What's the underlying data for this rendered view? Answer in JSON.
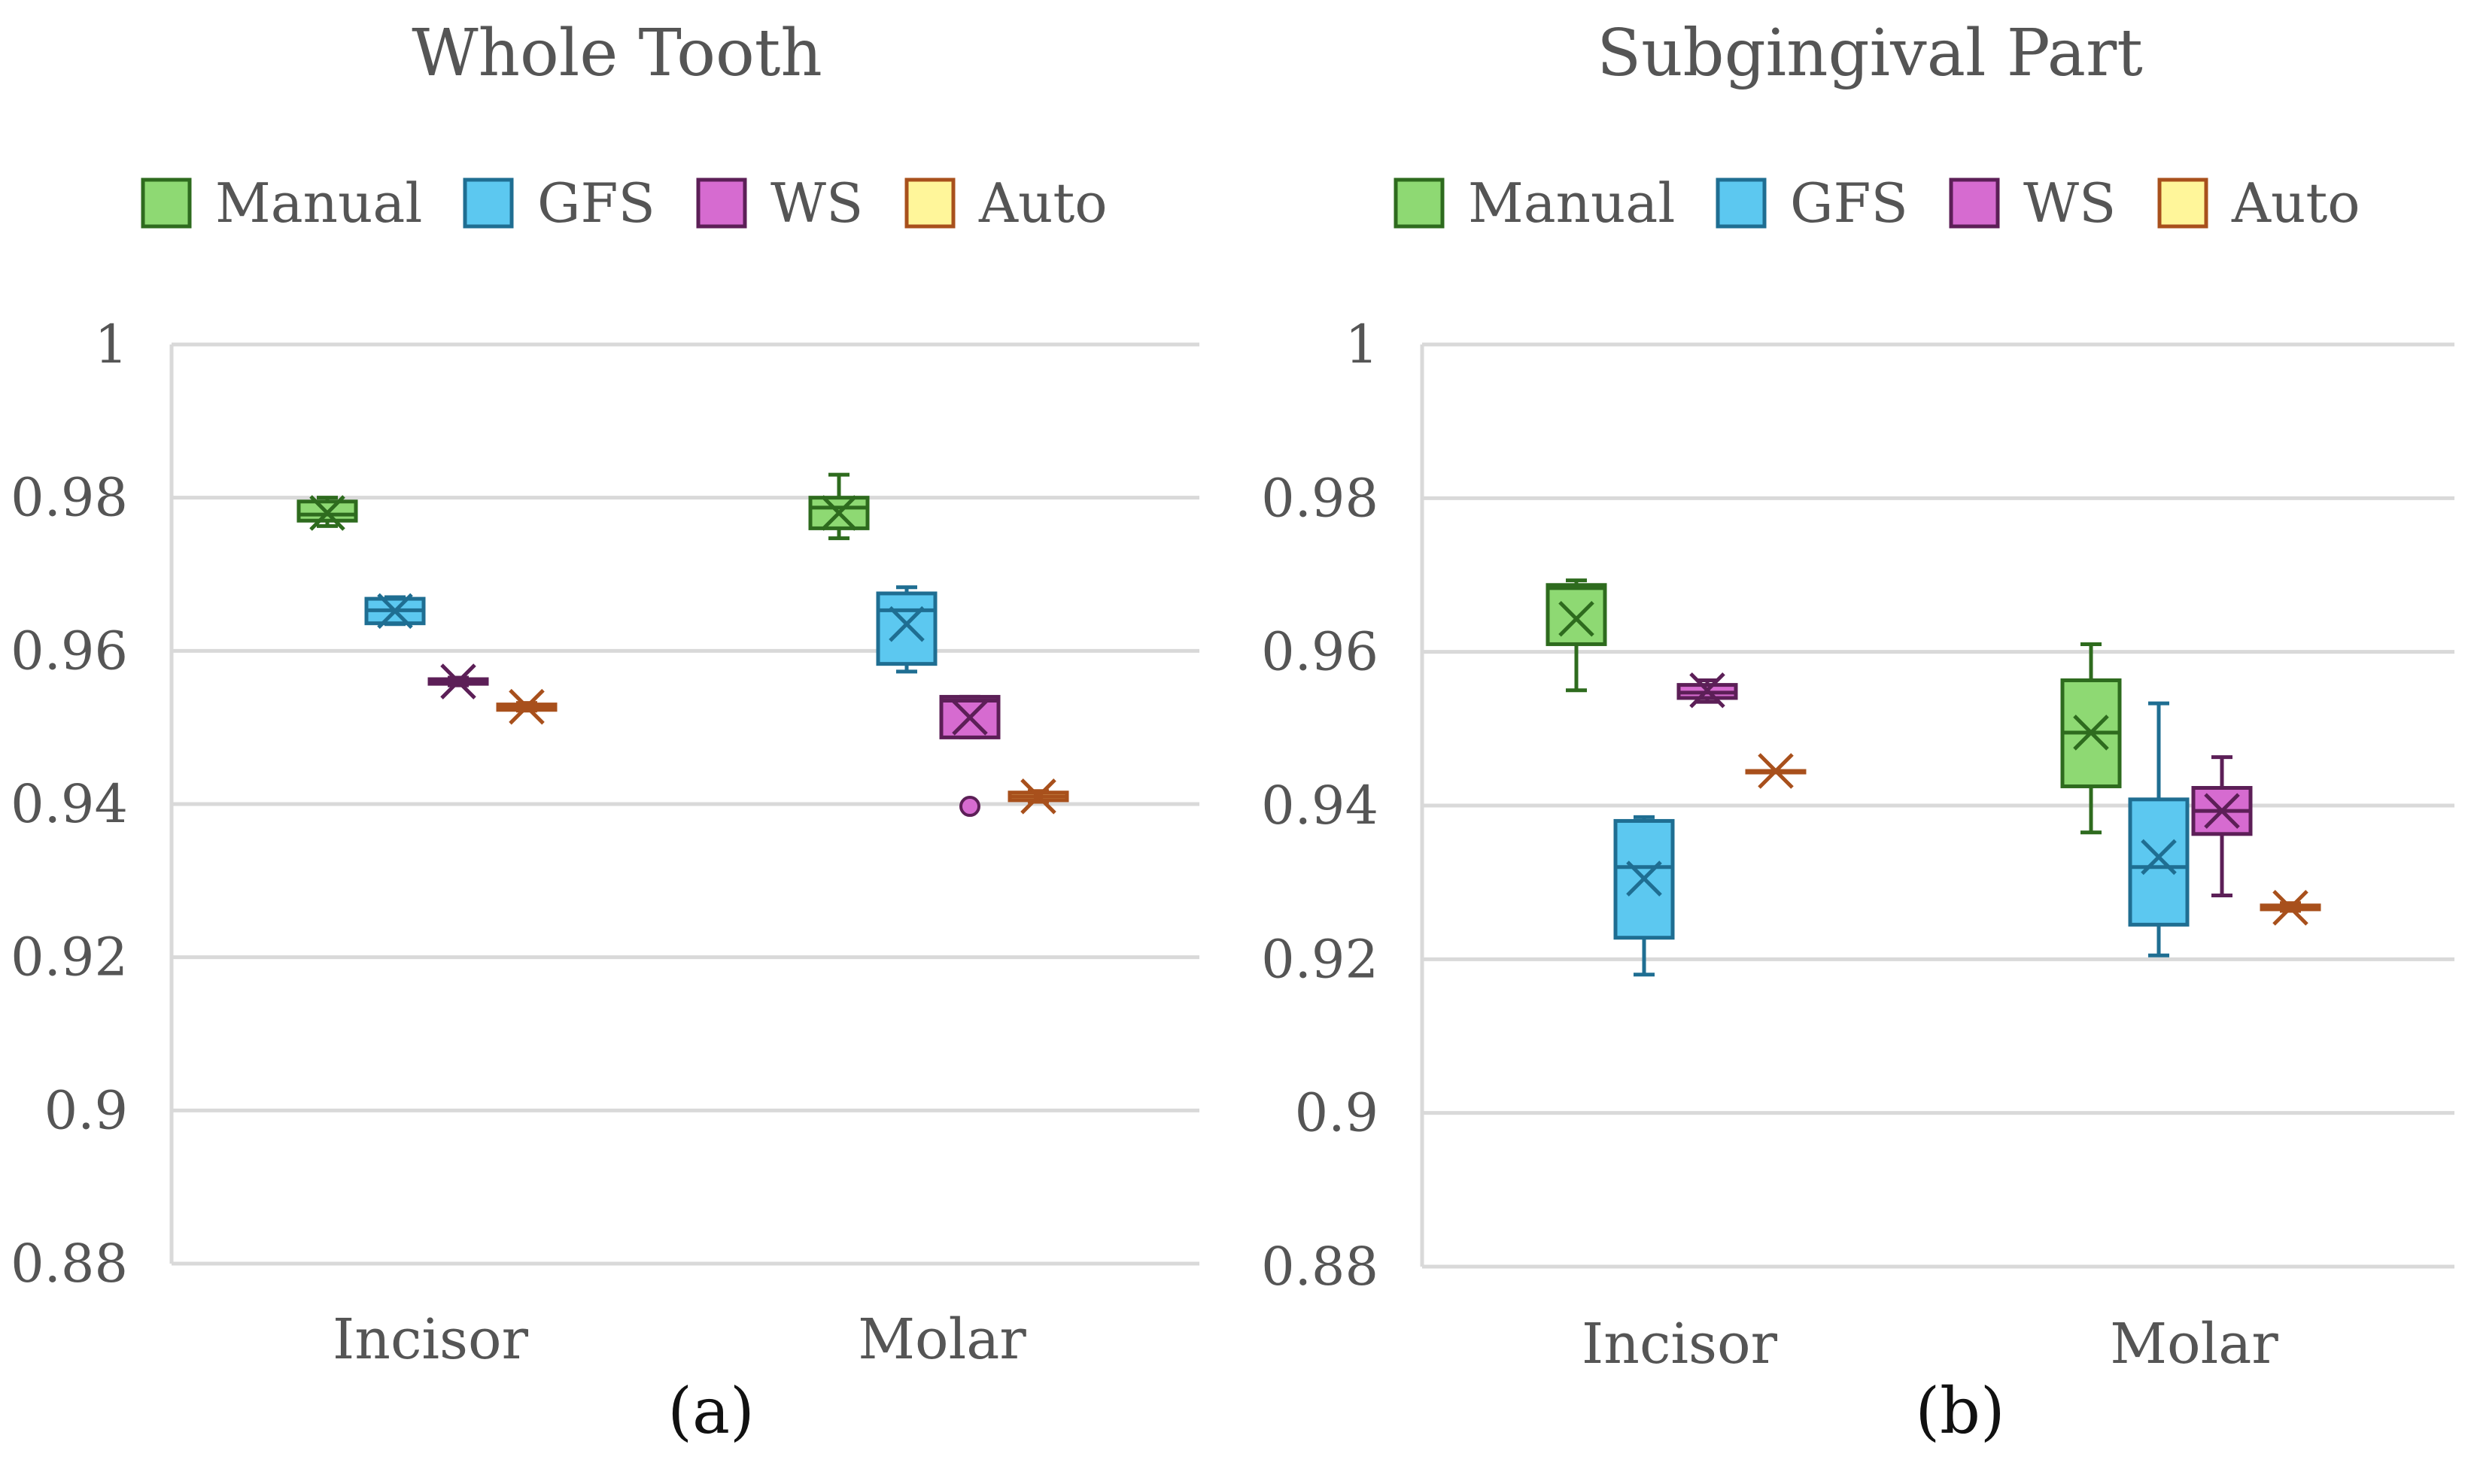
{
  "series_colors": {
    "Manual": {
      "fill": "#8ed973",
      "stroke": "#2e6b1e"
    },
    "GFS": {
      "fill": "#5cc8f0",
      "stroke": "#1f6e92"
    },
    "WS": {
      "fill": "#d66bd0",
      "stroke": "#5c1f57"
    },
    "Auto": {
      "fill": "#fff69a",
      "stroke": "#a8501c"
    }
  },
  "text_color": "#555555",
  "grid_color": "#d9d9d9",
  "chart_data": [
    {
      "type": "box",
      "title": "Whole Tooth",
      "caption": "(a)",
      "categories": [
        "Incisor",
        "Molar"
      ],
      "legend": [
        "Manual",
        "GFS",
        "WS",
        "Auto"
      ],
      "legend_position": "top",
      "ylim": [
        0.88,
        1
      ],
      "yticks": [
        "0.88",
        "0.9",
        "0.92",
        "0.94",
        "0.96",
        "0.98",
        "1"
      ],
      "gridlines": true,
      "series": [
        {
          "name": "Manual",
          "boxes": [
            {
              "min": 0.9763,
              "q1": 0.977,
              "median": 0.9778,
              "q3": 0.9795,
              "max": 0.98,
              "mean": 0.978
            },
            {
              "min": 0.9747,
              "q1": 0.976,
              "median": 0.9787,
              "q3": 0.98,
              "max": 0.983,
              "mean": 0.978
            }
          ]
        },
        {
          "name": "GFS",
          "boxes": [
            {
              "min": 0.9635,
              "q1": 0.9636,
              "median": 0.9653,
              "q3": 0.9668,
              "max": 0.967,
              "mean": 0.9652
            },
            {
              "min": 0.9573,
              "q1": 0.9583,
              "median": 0.9653,
              "q3": 0.9675,
              "max": 0.9683,
              "mean": 0.9635
            }
          ]
        },
        {
          "name": "WS",
          "boxes": [
            {
              "min": 0.9555,
              "q1": 0.9557,
              "median": 0.956,
              "q3": 0.9563,
              "max": 0.9565,
              "mean": 0.956
            },
            {
              "min": 0.9487,
              "q1": 0.9487,
              "median": 0.9535,
              "q3": 0.954,
              "max": 0.954,
              "mean": 0.9513,
              "outliers": [
                0.9397
              ]
            }
          ]
        },
        {
          "name": "Auto",
          "boxes": [
            {
              "min": 0.9522,
              "q1": 0.9523,
              "median": 0.9527,
              "q3": 0.953,
              "max": 0.9532,
              "mean": 0.9527
            },
            {
              "min": 0.9403,
              "q1": 0.9405,
              "median": 0.941,
              "q3": 0.9415,
              "max": 0.9417,
              "mean": 0.941
            }
          ]
        }
      ]
    },
    {
      "type": "box",
      "title": "Subgingival Part",
      "caption": "(b)",
      "categories": [
        "Incisor",
        "Molar"
      ],
      "legend": [
        "Manual",
        "GFS",
        "WS",
        "Auto"
      ],
      "legend_position": "top",
      "ylim": [
        0.88,
        1
      ],
      "yticks": [
        "0.88",
        "0.9",
        "0.92",
        "0.94",
        "0.96",
        "0.98",
        "1"
      ],
      "gridlines": true,
      "series": [
        {
          "name": "Manual",
          "boxes": [
            {
              "min": 0.955,
              "q1": 0.961,
              "median": 0.9683,
              "q3": 0.9687,
              "max": 0.9693,
              "mean": 0.9643
            },
            {
              "min": 0.9365,
              "q1": 0.9425,
              "median": 0.9495,
              "q3": 0.9563,
              "max": 0.961,
              "mean": 0.9495
            }
          ]
        },
        {
          "name": "GFS",
          "boxes": [
            {
              "min": 0.918,
              "q1": 0.9228,
              "median": 0.932,
              "q3": 0.938,
              "max": 0.9385,
              "mean": 0.9305
            },
            {
              "min": 0.9205,
              "q1": 0.9245,
              "median": 0.932,
              "q3": 0.9408,
              "max": 0.9533,
              "mean": 0.9333
            }
          ]
        },
        {
          "name": "WS",
          "boxes": [
            {
              "min": 0.9535,
              "q1": 0.954,
              "median": 0.9547,
              "q3": 0.9557,
              "max": 0.9563,
              "mean": 0.955
            },
            {
              "min": 0.9283,
              "q1": 0.9363,
              "median": 0.9393,
              "q3": 0.9423,
              "max": 0.9463,
              "mean": 0.9393
            }
          ]
        },
        {
          "name": "Auto",
          "boxes": [
            {
              "min": 0.9445,
              "q1": 0.9445,
              "median": 0.9445,
              "q3": 0.9445,
              "max": 0.9445,
              "mean": 0.9445
            },
            {
              "min": 0.9263,
              "q1": 0.9265,
              "median": 0.9268,
              "q3": 0.927,
              "max": 0.9273,
              "mean": 0.9267
            }
          ]
        }
      ]
    }
  ]
}
